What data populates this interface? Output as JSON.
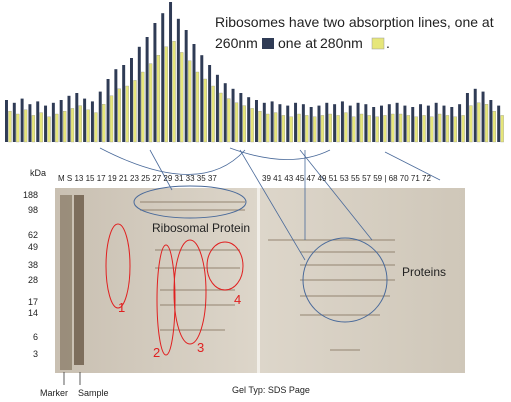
{
  "chart_data": {
    "type": "bar",
    "title": "Ribosomes have two absorption lines, one at",
    "separator": "one at",
    "end": ".",
    "ylim": [
      0,
      100
    ],
    "series": [
      {
        "name": "260nm",
        "color": "#2f3b55",
        "values": [
          30,
          28,
          31,
          27,
          29,
          26,
          28,
          30,
          33,
          35,
          31,
          29,
          36,
          45,
          52,
          55,
          60,
          68,
          75,
          85,
          92,
          100,
          88,
          80,
          70,
          62,
          55,
          48,
          42,
          38,
          35,
          32,
          30,
          28,
          29,
          27,
          26,
          28,
          27,
          25,
          26,
          28,
          27,
          29,
          26,
          28,
          27,
          25,
          26,
          27,
          28,
          26,
          25,
          27,
          26,
          28,
          26,
          25,
          27,
          35,
          38,
          36,
          30,
          26
        ]
      },
      {
        "name": "280nm",
        "color": "#e6e67a",
        "values": [
          22,
          20,
          23,
          19,
          21,
          18,
          20,
          22,
          24,
          26,
          23,
          21,
          27,
          33,
          38,
          40,
          44,
          50,
          56,
          62,
          68,
          72,
          64,
          58,
          50,
          45,
          40,
          35,
          31,
          28,
          26,
          24,
          22,
          20,
          21,
          19,
          18,
          20,
          19,
          18,
          19,
          20,
          19,
          21,
          18,
          20,
          19,
          18,
          19,
          20,
          20,
          19,
          18,
          19,
          18,
          20,
          19,
          18,
          19,
          26,
          28,
          27,
          22,
          19
        ]
      }
    ]
  },
  "gel": {
    "unit": "kDa",
    "markers": [
      "188",
      "98",
      "62",
      "49",
      "38",
      "28",
      "17",
      "14",
      "6",
      "3"
    ],
    "lanes_left": "M S 13 15 17 19 21 23 25 27 29 31 33 35 37",
    "lanes_right": "39 41 43 45 47 49 51 53 55 57 59 | 68 70 71 72",
    "ribosomal": "Ribosomal Protein",
    "proteins": "Proteins",
    "numbers": [
      "1",
      "2",
      "3",
      "4"
    ],
    "marker": "Marker",
    "sample": "Sample",
    "caption": "Gel Typ: SDS Page"
  }
}
